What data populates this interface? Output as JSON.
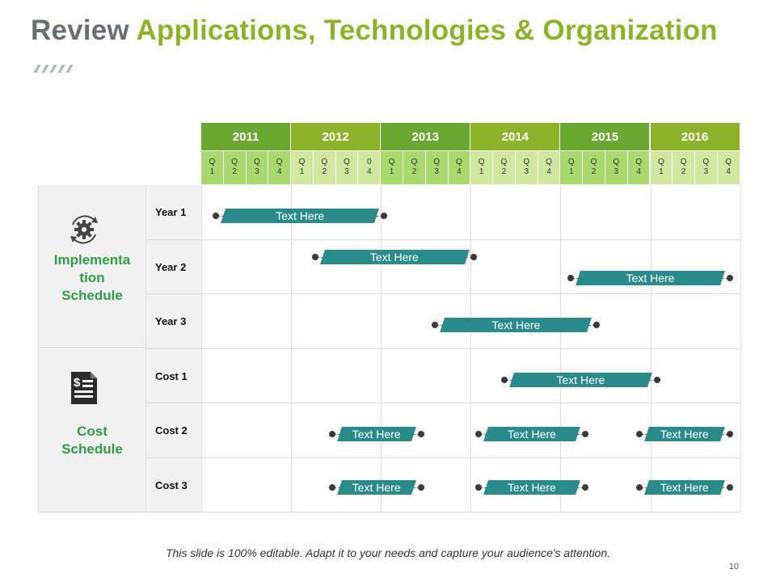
{
  "title": {
    "part1": "Review ",
    "part2": "Applications, Technologies & Organization"
  },
  "colors": {
    "year_dark": "#6aa733",
    "year_light": "#8db32a",
    "quarter_dark": "#a9d86e",
    "quarter_light": "#cfe79e",
    "bar": "#2b8b8b"
  },
  "years": [
    "2011",
    "2012",
    "2013",
    "2014",
    "2015",
    "2016"
  ],
  "quarters": [
    [
      "Q\n1",
      "Q\n2",
      "Q\n3",
      "Q\n4"
    ],
    [
      "Q\n1",
      "Q\n2",
      "Q\n3",
      "0\n4"
    ],
    [
      "Q\n1",
      "Q\n2",
      "Q\n3",
      "Q\n4"
    ],
    [
      "Q\n1",
      "Q\n2",
      "Q\n3",
      "Q\n4"
    ],
    [
      "Q\n1",
      "Q\n2",
      "Q\n3",
      "Q\n4"
    ],
    [
      "Q\n1",
      "Q\n2",
      "Q\n3",
      "Q\n4"
    ]
  ],
  "categories": [
    {
      "label": "Implementa\ntion\nSchedule",
      "icon": "gear-cycle-icon"
    },
    {
      "label": "Cost\nSchedule",
      "icon": "invoice-dollar-icon"
    }
  ],
  "rows": [
    "Year 1",
    "Year 2",
    "Year 3",
    "Cost 1",
    "Cost 2",
    "Cost 3"
  ],
  "bars": [
    {
      "text": "Text Here",
      "row": 0,
      "start": 0.12,
      "end": 2.08,
      "slot": "mid"
    },
    {
      "text": "Text Here",
      "row": 1,
      "start": 1.22,
      "end": 3.08,
      "slot": "upper"
    },
    {
      "text": "Text Here",
      "row": 1,
      "start": 4.07,
      "end": 5.93,
      "slot": "lower"
    },
    {
      "text": "Text Here",
      "row": 2,
      "start": 2.56,
      "end": 4.45,
      "slot": "mid"
    },
    {
      "text": "Text Here",
      "row": 3,
      "start": 3.33,
      "end": 5.12,
      "slot": "mid"
    },
    {
      "text": "Text Here",
      "row": 4,
      "start": 1.41,
      "end": 2.49,
      "slot": "mid"
    },
    {
      "text": "Text Here",
      "row": 4,
      "start": 3.04,
      "end": 4.32,
      "slot": "mid"
    },
    {
      "text": "Text Here",
      "row": 4,
      "start": 4.83,
      "end": 5.93,
      "slot": "mid"
    },
    {
      "text": "Text Here",
      "row": 5,
      "start": 1.41,
      "end": 2.49,
      "slot": "low"
    },
    {
      "text": "Text Here",
      "row": 5,
      "start": 3.04,
      "end": 4.32,
      "slot": "low"
    },
    {
      "text": "Text Here",
      "row": 5,
      "start": 4.83,
      "end": 5.93,
      "slot": "low"
    }
  ],
  "footer": "This slide is 100% editable. Adapt it to your needs and capture your audience's attention.",
  "page_number": "10"
}
